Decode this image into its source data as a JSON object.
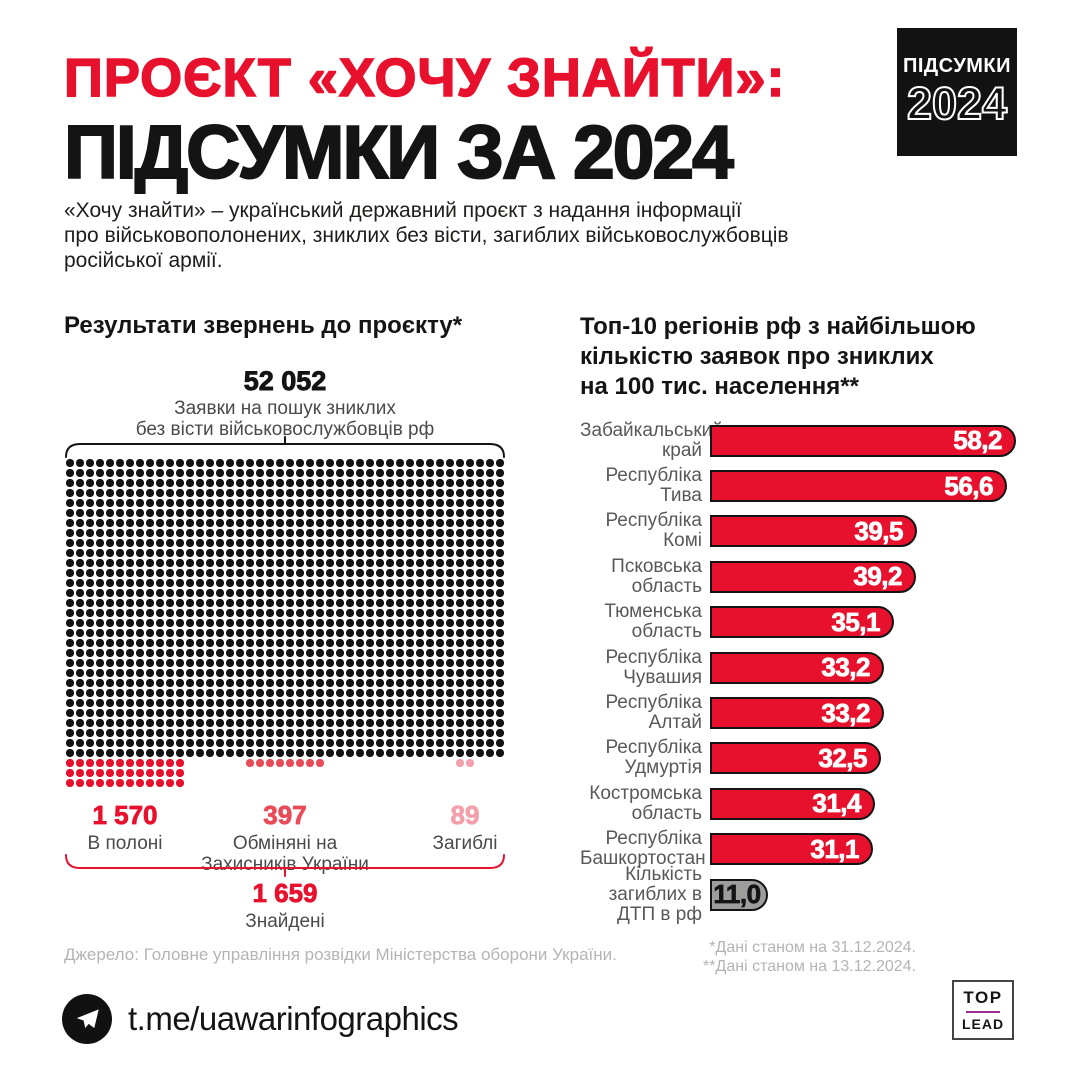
{
  "page": {
    "background": "#ffffff",
    "accent_red": "#e8112d",
    "black": "#141414"
  },
  "header": {
    "title_line1": "ПРОЄКТ «ХОЧУ ЗНАЙТИ»:",
    "title_line2": "ПІДСУМКИ ЗА 2024",
    "badge": {
      "line1": "ПІДСУМКИ",
      "year": "2024"
    },
    "description": "«Хочу знайти» – український державний проєкт з надання інформації\nпро військовополонених, зниклих без вісти, загиблих військовослужбовців\nросійської армії."
  },
  "chart_data": [
    {
      "type": "pictogram",
      "title": "Результати звернень до проєкту*",
      "total_value": "52 052",
      "total_label": "Заявки на пошук зниклих\nбез вісти військовослужбовців рф",
      "grid": {
        "columns": 44,
        "rows": 30,
        "dot_color": "#141414"
      },
      "groups": [
        {
          "value": "1 570",
          "label": "В полоні",
          "color": "#e8112d",
          "rows": 3,
          "cols": 12,
          "col_offset": 0
        },
        {
          "value": "397",
          "label": "Обміняні на\nЗахисників України",
          "color": "#ea4b58",
          "rows": 1,
          "cols": 8,
          "col_offset": 18
        },
        {
          "value": "89",
          "label": "Загиблі",
          "color": "#f4a0ac",
          "rows": 1,
          "cols": 2,
          "col_offset": 39
        }
      ],
      "total_found": {
        "value": "1 659",
        "label": "Знайдені"
      }
    },
    {
      "type": "bar",
      "title": "Топ-10 регіонів рф з найбільшою\nкількістю заявок про зниклих\nна 100 тис. населення**",
      "categories": [
        "Забайкальський край",
        "Республіка Тива",
        "Республіка Комі",
        "Псковська область",
        "Тюменська область",
        "Республіка Чувашия",
        "Республіка Алтай",
        "Республіка Удмуртія",
        "Костромська область",
        "Республіка Башкортостан",
        "Кількість загиблих в ДТП в рф"
      ],
      "label_lines": [
        [
          "Забайкальський",
          "край"
        ],
        [
          "Республіка",
          "Тива"
        ],
        [
          "Республіка",
          "Комі"
        ],
        [
          "Псковська",
          "область"
        ],
        [
          "Тюменська",
          "область"
        ],
        [
          "Республіка",
          "Чувашия"
        ],
        [
          "Республіка",
          "Алтай"
        ],
        [
          "Республіка",
          "Удмуртія"
        ],
        [
          "Костромська",
          "область"
        ],
        [
          "Республіка",
          "Башкортостан"
        ],
        [
          "Кількість",
          "загиблих в",
          "ДТП в рф"
        ]
      ],
      "values": [
        58.2,
        56.6,
        39.5,
        39.2,
        35.1,
        33.2,
        33.2,
        32.5,
        31.4,
        31.1,
        11.0
      ],
      "value_labels": [
        "58,2",
        "56,6",
        "39,5",
        "39,2",
        "35,1",
        "33,2",
        "33,2",
        "32,5",
        "31,4",
        "31,1",
        "11,0"
      ],
      "xlim": [
        0,
        60
      ],
      "bar_color": "#e8112d",
      "reference_bar": {
        "index": 10,
        "color": "#9d9d9c",
        "text_color": "#141414"
      },
      "legend_position": "none",
      "grid_lines": false
    }
  ],
  "footer": {
    "source": "Джерело: Головне управління розвідки Міністерства оборони України.",
    "notes": "*Дані станом на 31.12.2024.\n**Дані станом на 13.12.2024.",
    "telegram": "t.me/uawarinfographics",
    "logo": {
      "top": "TOP",
      "lead": "LEAD"
    }
  }
}
